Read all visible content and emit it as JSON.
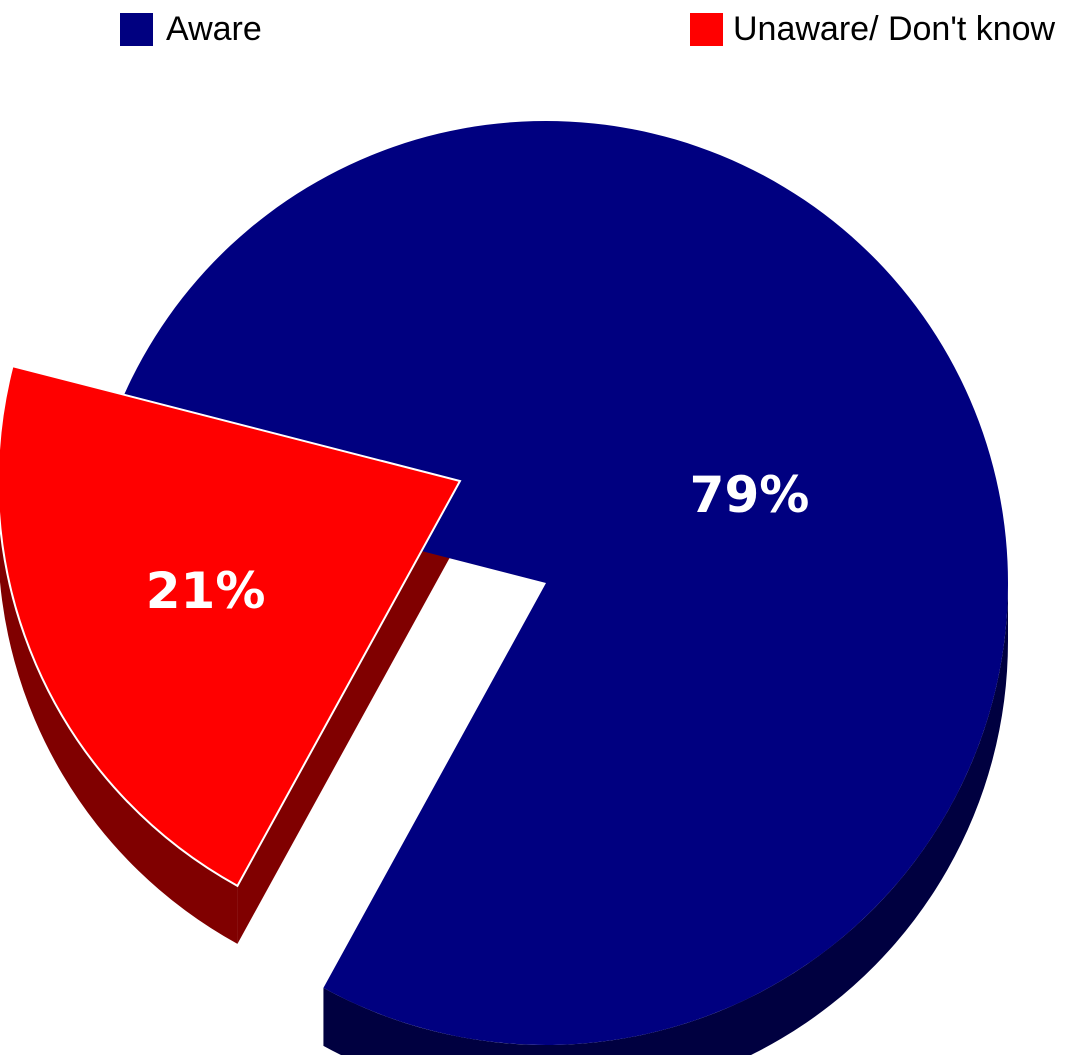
{
  "chart_data": {
    "type": "pie",
    "style": "3d-exploded",
    "categories": [
      "Aware",
      "Unaware/ Don't know"
    ],
    "values": [
      79,
      21
    ],
    "data_labels": [
      "79%",
      "21%"
    ],
    "colors": [
      "#000080",
      "#ff0000"
    ],
    "side_colors": [
      "#000040",
      "#800000"
    ],
    "legend": {
      "placement": "top",
      "entries": [
        "Aware",
        "Unaware/ Don't know"
      ]
    }
  }
}
